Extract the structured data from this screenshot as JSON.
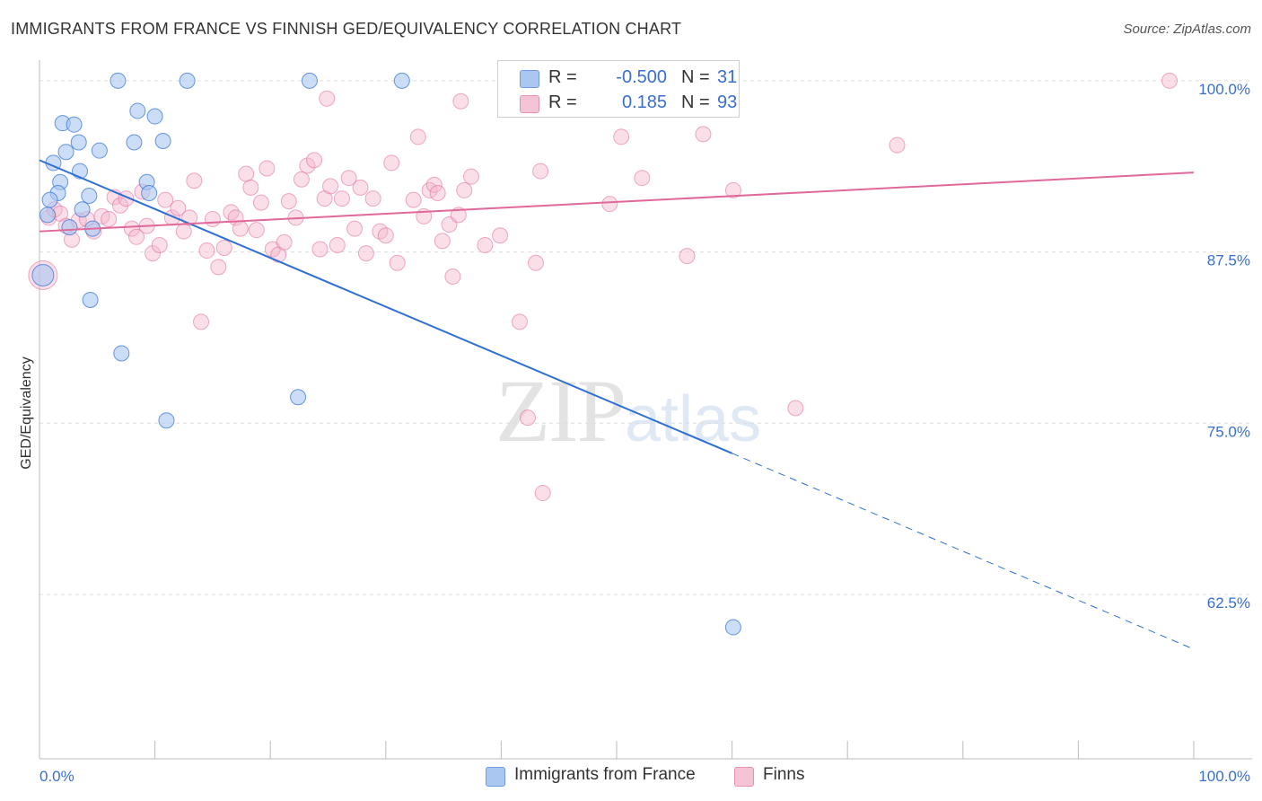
{
  "title": "IMMIGRANTS FROM FRANCE VS FINNISH GED/EQUIVALENCY CORRELATION CHART",
  "source": "Source: ZipAtlas.com",
  "watermark": {
    "zip": "ZIP",
    "atlas": "atlas"
  },
  "colors": {
    "blue": "#2e6fd4",
    "blue_fill": "#a9c7f1",
    "pink": "#e0689a",
    "pink_fill": "#f5b6cc",
    "tick_label": "#3a6fd0"
  },
  "legend": {
    "rows": [
      {
        "r_label": "R =",
        "r_value": "-0.500",
        "n_label": "N =",
        "n_value": "31"
      },
      {
        "r_label": "R =",
        "r_value": "0.185",
        "n_label": "N =",
        "n_value": "93"
      }
    ]
  },
  "bottom_legend": {
    "series1": "Immigrants from France",
    "series2": "Finns"
  },
  "chart_data": {
    "type": "scatter",
    "title": "IMMIGRANTS FROM FRANCE VS FINNISH GED/EQUIVALENCY CORRELATION CHART",
    "xlabel": "",
    "ylabel": "GED/Equivalency",
    "xlim": [
      0,
      100
    ],
    "ylim": [
      50.5,
      101.5
    ],
    "x_tick_labels": [
      "0.0%",
      "100.0%"
    ],
    "y_ticks": [
      {
        "value": 100,
        "label": "100.0%"
      },
      {
        "value": 87.5,
        "label": "87.5%"
      },
      {
        "value": 75,
        "label": "75.0%"
      },
      {
        "value": 62.5,
        "label": "62.5%"
      }
    ],
    "grid": true,
    "series": [
      {
        "name": "Immigrants from France",
        "R": -0.5,
        "N": 31,
        "trend": {
          "x0": 0,
          "y0": 94.2,
          "x1": 60,
          "y1": 72.8,
          "dash_x1": 100,
          "dash_y1": 58.5
        },
        "points": [
          [
            6.8,
            100
          ],
          [
            12.8,
            100
          ],
          [
            23.4,
            100
          ],
          [
            31.4,
            100
          ],
          [
            8.5,
            97.8
          ],
          [
            10,
            97.4
          ],
          [
            2,
            96.9
          ],
          [
            3,
            96.8
          ],
          [
            3.4,
            95.5
          ],
          [
            8.2,
            95.5
          ],
          [
            10.7,
            95.6
          ],
          [
            2.3,
            94.8
          ],
          [
            5.2,
            94.9
          ],
          [
            1.2,
            94
          ],
          [
            3.5,
            93.4
          ],
          [
            1.8,
            92.6
          ],
          [
            9.3,
            92.6
          ],
          [
            1.6,
            91.8
          ],
          [
            4.3,
            91.6
          ],
          [
            9.5,
            91.8
          ],
          [
            0.9,
            91.3
          ],
          [
            3.7,
            90.6
          ],
          [
            0.7,
            90.2
          ],
          [
            2.6,
            89.3
          ],
          [
            4.6,
            89.2
          ],
          [
            0.3,
            85.8
          ],
          [
            4.4,
            84
          ],
          [
            7.1,
            80.1
          ],
          [
            22.4,
            76.9
          ],
          [
            11,
            75.2
          ],
          [
            60.1,
            60.1
          ]
        ]
      },
      {
        "name": "Finns",
        "R": 0.185,
        "N": 93,
        "trend": {
          "x0": 0,
          "y0": 89,
          "x1": 100,
          "y1": 93.3
        },
        "points": [
          [
            0.3,
            85.8
          ],
          [
            0.8,
            90
          ],
          [
            1.3,
            90.6
          ],
          [
            1.8,
            90.3
          ],
          [
            2.3,
            89.4
          ],
          [
            2.8,
            88.4
          ],
          [
            3.4,
            89.8
          ],
          [
            4.1,
            89.9
          ],
          [
            4.7,
            89
          ],
          [
            5.4,
            90.1
          ],
          [
            6,
            89.9
          ],
          [
            6.5,
            91.5
          ],
          [
            7,
            90.9
          ],
          [
            7.5,
            91.4
          ],
          [
            8,
            89.2
          ],
          [
            8.4,
            88.6
          ],
          [
            8.9,
            91.9
          ],
          [
            9.3,
            89.4
          ],
          [
            9.8,
            87.4
          ],
          [
            10.4,
            88
          ],
          [
            10.9,
            91.3
          ],
          [
            11.5,
            90
          ],
          [
            12,
            90.7
          ],
          [
            12.5,
            89
          ],
          [
            13,
            90
          ],
          [
            13.4,
            92.7
          ],
          [
            14,
            82.4
          ],
          [
            14.5,
            87.6
          ],
          [
            15,
            89.9
          ],
          [
            15.5,
            86.4
          ],
          [
            16,
            87.8
          ],
          [
            16.6,
            90.4
          ],
          [
            17,
            90
          ],
          [
            17.4,
            89.2
          ],
          [
            17.9,
            93.2
          ],
          [
            18.3,
            92.2
          ],
          [
            18.8,
            89.1
          ],
          [
            19.2,
            91.1
          ],
          [
            19.7,
            93.6
          ],
          [
            20.2,
            87.7
          ],
          [
            20.7,
            87.3
          ],
          [
            21.2,
            88.2
          ],
          [
            21.6,
            91.2
          ],
          [
            22.2,
            90
          ],
          [
            22.7,
            92.8
          ],
          [
            23.2,
            93.8
          ],
          [
            23.8,
            94.2
          ],
          [
            24.3,
            87.7
          ],
          [
            24.7,
            91.4
          ],
          [
            25.2,
            92.3
          ],
          [
            25.8,
            88
          ],
          [
            26.2,
            91.4
          ],
          [
            26.8,
            92.9
          ],
          [
            27.3,
            89.2
          ],
          [
            27.8,
            92.2
          ],
          [
            28.3,
            87.4
          ],
          [
            28.9,
            91.4
          ],
          [
            29.5,
            89
          ],
          [
            30,
            88.7
          ],
          [
            30.5,
            94
          ],
          [
            31,
            86.7
          ],
          [
            32.4,
            91.3
          ],
          [
            32.8,
            95.9
          ],
          [
            33.3,
            90.1
          ],
          [
            33.8,
            92
          ],
          [
            34.2,
            92.4
          ],
          [
            34.5,
            91.8
          ],
          [
            34.9,
            88.3
          ],
          [
            35.5,
            89.5
          ],
          [
            35.8,
            85.7
          ],
          [
            36.3,
            90.2
          ],
          [
            36.8,
            92
          ],
          [
            37.4,
            93
          ],
          [
            38.6,
            88
          ],
          [
            39.9,
            88.7
          ],
          [
            41.6,
            82.4
          ],
          [
            42.3,
            75.4
          ],
          [
            43,
            86.7
          ],
          [
            43.4,
            93.4
          ],
          [
            43.6,
            69.9
          ],
          [
            49.4,
            91
          ],
          [
            50.4,
            95.9
          ],
          [
            52.2,
            92.9
          ],
          [
            56.1,
            87.2
          ],
          [
            57.5,
            96.1
          ],
          [
            60.1,
            92
          ],
          [
            65.5,
            76.1
          ],
          [
            74.3,
            95.3
          ],
          [
            97.9,
            100
          ],
          [
            59.5,
            100
          ],
          [
            57.2,
            100
          ],
          [
            36.5,
            98.5
          ],
          [
            24.9,
            98.7
          ]
        ]
      }
    ]
  }
}
